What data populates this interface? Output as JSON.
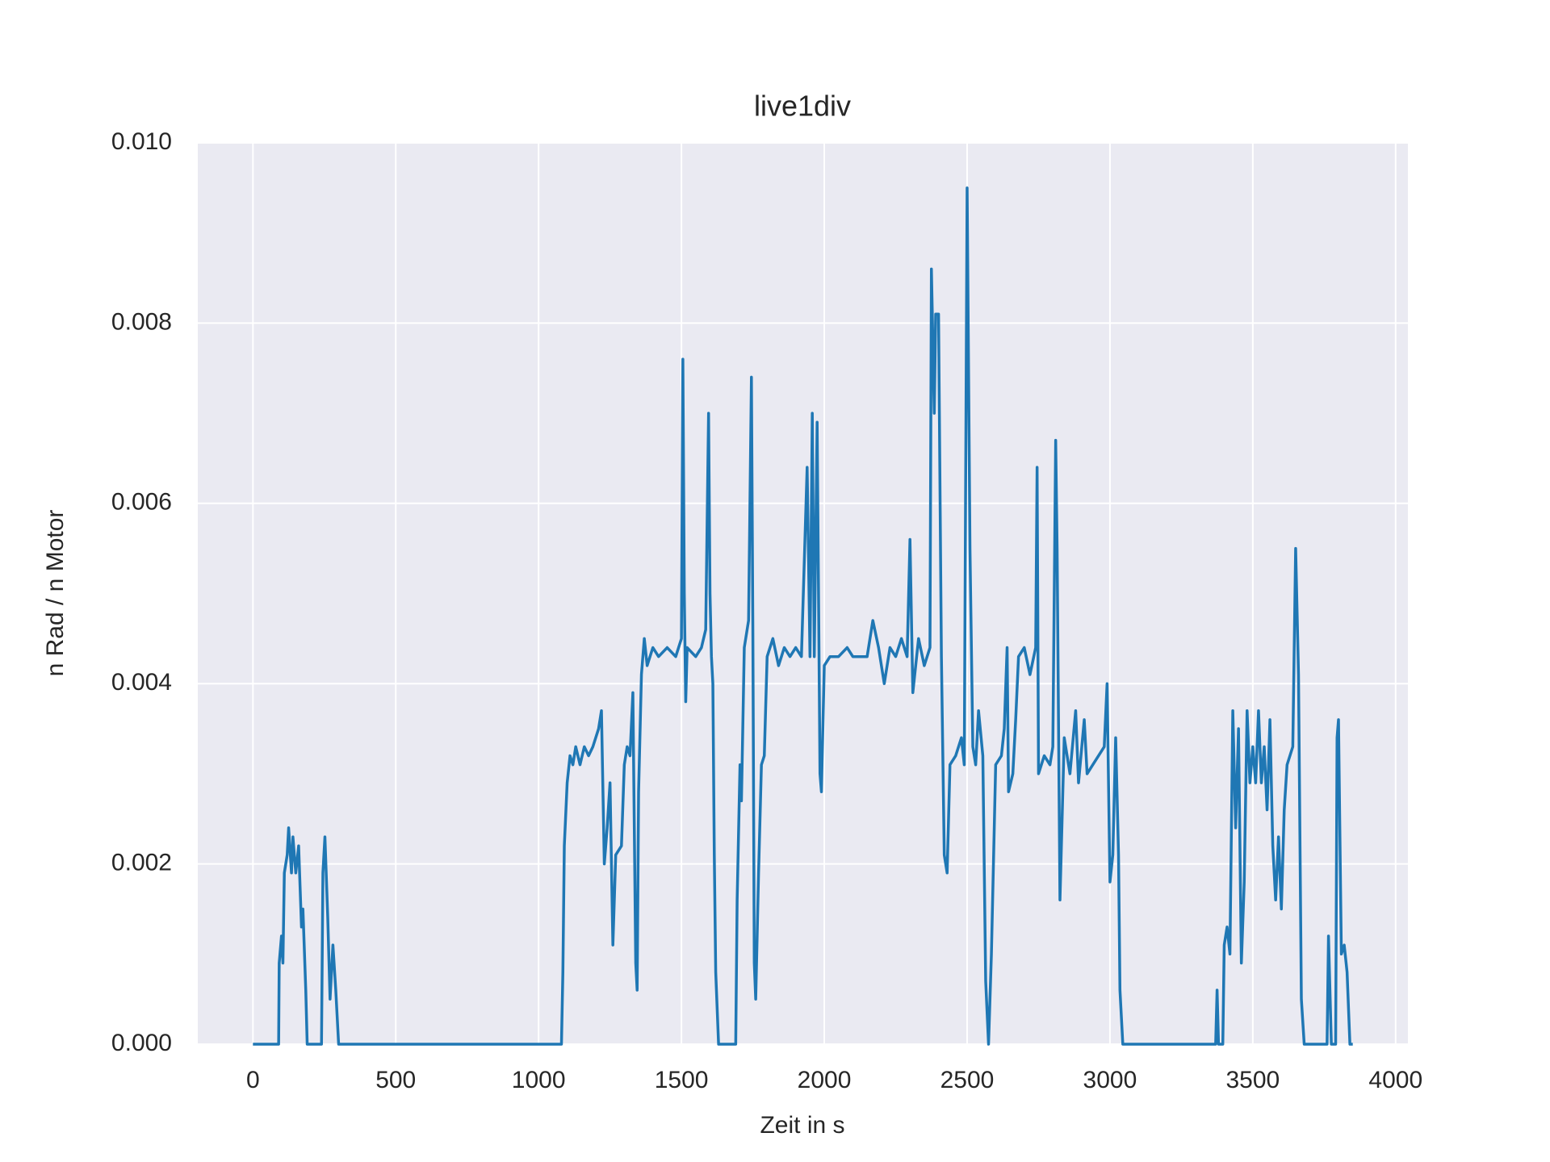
{
  "chart_data": {
    "type": "line",
    "title": "live1div",
    "x_label": "Zeit in s",
    "y_label": "n Rad / n Motor",
    "x": [
      0,
      90,
      92,
      100,
      105,
      110,
      120,
      125,
      135,
      140,
      150,
      160,
      170,
      175,
      185,
      190,
      240,
      245,
      252,
      262,
      270,
      280,
      290,
      300,
      1080,
      1085,
      1090,
      1100,
      1110,
      1120,
      1130,
      1145,
      1160,
      1175,
      1190,
      1210,
      1220,
      1230,
      1240,
      1250,
      1260,
      1270,
      1290,
      1300,
      1310,
      1320,
      1330,
      1340,
      1345,
      1350,
      1360,
      1370,
      1380,
      1400,
      1420,
      1450,
      1480,
      1500,
      1505,
      1510,
      1515,
      1520,
      1550,
      1570,
      1585,
      1595,
      1600,
      1605,
      1610,
      1615,
      1620,
      1630,
      1690,
      1695,
      1705,
      1710,
      1720,
      1735,
      1745,
      1750,
      1755,
      1760,
      1770,
      1780,
      1790,
      1800,
      1820,
      1840,
      1860,
      1880,
      1900,
      1920,
      1940,
      1950,
      1958,
      1965,
      1975,
      1985,
      1990,
      2000,
      2020,
      2050,
      2080,
      2100,
      2150,
      2170,
      2190,
      2200,
      2210,
      2230,
      2250,
      2270,
      2290,
      2300,
      2310,
      2330,
      2350,
      2370,
      2375,
      2385,
      2390,
      2400,
      2410,
      2420,
      2430,
      2440,
      2460,
      2480,
      2490,
      2500,
      2510,
      2520,
      2530,
      2540,
      2555,
      2565,
      2575,
      2585,
      2600,
      2620,
      2630,
      2640,
      2645,
      2660,
      2670,
      2680,
      2700,
      2720,
      2740,
      2745,
      2750,
      2770,
      2790,
      2800,
      2810,
      2815,
      2825,
      2840,
      2860,
      2880,
      2890,
      2910,
      2920,
      2940,
      2960,
      2980,
      2990,
      3000,
      3010,
      3020,
      3030,
      3035,
      3045,
      3370,
      3375,
      3380,
      3395,
      3400,
      3410,
      3420,
      3430,
      3440,
      3450,
      3460,
      3470,
      3480,
      3490,
      3500,
      3510,
      3520,
      3530,
      3540,
      3550,
      3560,
      3570,
      3580,
      3590,
      3600,
      3610,
      3620,
      3640,
      3650,
      3660,
      3670,
      3680,
      3760,
      3765,
      3775,
      3790,
      3795,
      3800,
      3810,
      3820,
      3830,
      3840,
      3850
    ],
    "series": [
      {
        "color": "#1f77b4",
        "values": [
          0,
          0,
          0.0009,
          0.0012,
          0.0009,
          0.0019,
          0.0021,
          0.0024,
          0.0019,
          0.0023,
          0.0019,
          0.0022,
          0.0013,
          0.0015,
          0.0006,
          0,
          0,
          0.0019,
          0.0023,
          0.0014,
          0.0005,
          0.0011,
          0.0006,
          0,
          0,
          0.0008,
          0.0022,
          0.0029,
          0.0032,
          0.0031,
          0.0033,
          0.0031,
          0.0033,
          0.0032,
          0.0033,
          0.0035,
          0.0037,
          0.002,
          0.0024,
          0.0029,
          0.0011,
          0.0021,
          0.0022,
          0.0031,
          0.0033,
          0.0032,
          0.0039,
          0.0009,
          0.0006,
          0.0028,
          0.0041,
          0.0045,
          0.0042,
          0.0044,
          0.0043,
          0.0044,
          0.0043,
          0.0045,
          0.0076,
          0.005,
          0.0038,
          0.0044,
          0.0043,
          0.0044,
          0.0046,
          0.007,
          0.005,
          0.0043,
          0.004,
          0.0021,
          0.0008,
          0,
          0,
          0.0016,
          0.0031,
          0.0027,
          0.0044,
          0.0047,
          0.0074,
          0.0046,
          0.0009,
          0.0005,
          0.0019,
          0.0031,
          0.0032,
          0.0043,
          0.0045,
          0.0042,
          0.0044,
          0.0043,
          0.0044,
          0.0043,
          0.0064,
          0.0043,
          0.007,
          0.0043,
          0.0069,
          0.003,
          0.0028,
          0.0042,
          0.0043,
          0.0043,
          0.0044,
          0.0043,
          0.0043,
          0.0047,
          0.0044,
          0.0042,
          0.004,
          0.0044,
          0.0043,
          0.0045,
          0.0043,
          0.0056,
          0.0039,
          0.0045,
          0.0042,
          0.0044,
          0.0086,
          0.007,
          0.0081,
          0.0081,
          0.0043,
          0.0021,
          0.0019,
          0.0031,
          0.0032,
          0.0034,
          0.0031,
          0.0095,
          0.0055,
          0.0033,
          0.0031,
          0.0037,
          0.0032,
          0.0007,
          0,
          0.001,
          0.0031,
          0.0032,
          0.0035,
          0.0044,
          0.0028,
          0.003,
          0.0036,
          0.0043,
          0.0044,
          0.0041,
          0.0044,
          0.0064,
          0.003,
          0.0032,
          0.0031,
          0.0033,
          0.0067,
          0.0055,
          0.0016,
          0.0034,
          0.003,
          0.0037,
          0.0029,
          0.0036,
          0.003,
          0.0031,
          0.0032,
          0.0033,
          0.004,
          0.0018,
          0.0021,
          0.0034,
          0.0021,
          0.0006,
          0,
          0,
          0.0006,
          0,
          0,
          0.0011,
          0.0013,
          0.001,
          0.0037,
          0.0024,
          0.0035,
          0.0009,
          0.0018,
          0.0037,
          0.0029,
          0.0033,
          0.0029,
          0.0037,
          0.0029,
          0.0033,
          0.0026,
          0.0036,
          0.0022,
          0.0016,
          0.0023,
          0.0015,
          0.0026,
          0.0031,
          0.0033,
          0.0055,
          0.0041,
          0.0005,
          0,
          0,
          0.0012,
          0,
          0,
          0.0034,
          0.0036,
          0.001,
          0.0011,
          0.0008,
          0,
          0
        ]
      }
    ],
    "xlim": [
      -193,
      4043
    ],
    "xticks": [
      0,
      500,
      1000,
      1500,
      2000,
      2500,
      3000,
      3500,
      4000
    ],
    "ylim": [
      0,
      0.01
    ],
    "yticks": [
      {
        "value": 0,
        "label": "0.000"
      },
      {
        "value": 0.002,
        "label": "0.002"
      },
      {
        "value": 0.004,
        "label": "0.004"
      },
      {
        "value": 0.006,
        "label": "0.006"
      },
      {
        "value": 0.008,
        "label": "0.008"
      },
      {
        "value": 0.01,
        "label": "0.010"
      }
    ],
    "grid": true,
    "background": "#eaeaf2"
  }
}
